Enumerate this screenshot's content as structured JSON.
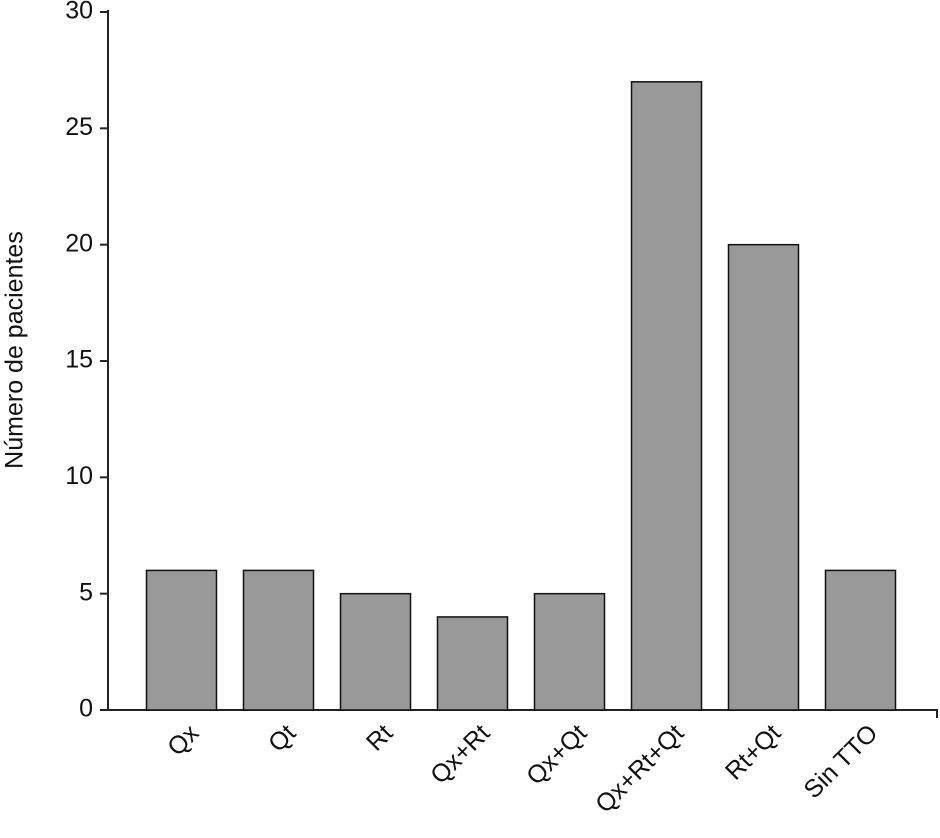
{
  "chart_data": {
    "type": "bar",
    "y_axis_label": "Número de pacientes",
    "categories": [
      "Qx",
      "Qt",
      "Rt",
      "Qx+Rt",
      "Qx+Qt",
      "Qx+Rt+Qt",
      "Rt+Qt",
      "Sin TTO"
    ],
    "values": [
      6,
      6,
      5,
      4,
      5,
      27,
      20,
      6
    ],
    "color": "#999999",
    "ylim": [
      0,
      30
    ],
    "yticks": [
      0,
      5,
      10,
      15,
      20,
      25,
      30
    ],
    "grid": false
  }
}
